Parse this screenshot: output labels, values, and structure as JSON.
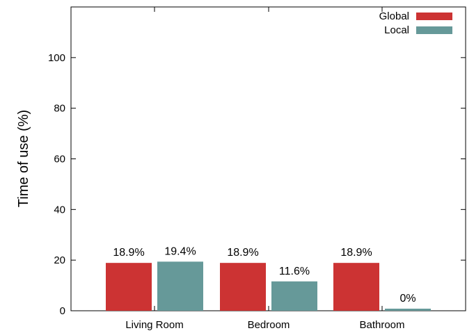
{
  "chart_data": {
    "type": "bar",
    "categories": [
      "Living Room",
      "Bedroom",
      "Bathroom"
    ],
    "series": [
      {
        "name": "Global",
        "values": [
          18.9,
          18.9,
          18.9
        ],
        "labels": [
          "18.9%",
          "18.9%",
          "18.9%"
        ],
        "color": "#cc3333"
      },
      {
        "name": "Local",
        "values": [
          19.4,
          11.6,
          0
        ],
        "labels": [
          "19.4%",
          "11.6%",
          "0%"
        ],
        "color": "#669999"
      }
    ],
    "ylabel": "Time of use (%)",
    "yticks": [
      "0",
      "20",
      "40",
      "60",
      "80",
      "100"
    ],
    "ytick_values": [
      0,
      20,
      40,
      60,
      80,
      100
    ],
    "ylim": [
      0,
      120
    ],
    "legend_position": "top-right",
    "grid": false
  }
}
